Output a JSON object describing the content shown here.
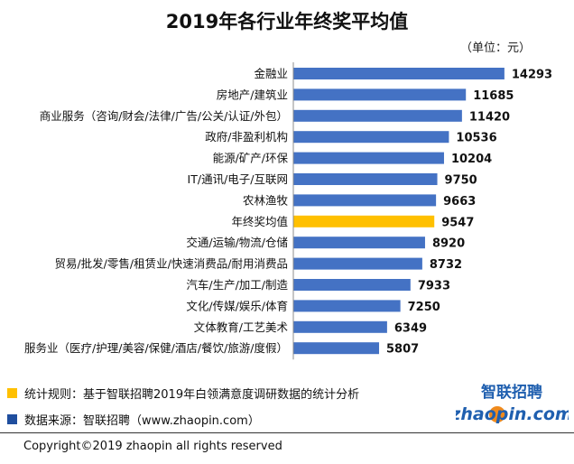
{
  "chart_data": {
    "type": "bar",
    "orientation": "horizontal",
    "title": "2019年各行业年终奖平均值",
    "unit_note": "（单位：元）",
    "categories": [
      "金融业",
      "房地产/建筑业",
      "商业服务（咨询/财会/法律/广告/公关/认证/外包）",
      "政府/非盈利机构",
      "能源/矿产/环保",
      "IT/通讯/电子/互联网",
      "农林渔牧",
      "年终奖均值",
      "交通/运输/物流/仓储",
      "贸易/批发/零售/租赁业/快速消费品/耐用消费品",
      "汽车/生产/加工/制造",
      "文化/传媒/娱乐/体育",
      "文体教育/工艺美术",
      "服务业（医疗/护理/美容/保健/酒店/餐饮/旅游/度假）"
    ],
    "values": [
      14293,
      11685,
      11420,
      10536,
      10204,
      9750,
      9663,
      9547,
      8920,
      8732,
      7933,
      7250,
      6349,
      5807
    ],
    "highlight_index": 7,
    "colors": {
      "bar": "#4472C4",
      "highlight": "#FFC000"
    },
    "xlim": [
      0,
      16500
    ],
    "grid": false
  },
  "legend": [
    {
      "text": "统计规则：基于智联招聘2019年白领满意度调研数据的统计分析",
      "color": "#FFC000"
    },
    {
      "text": "数据来源：智联招聘（www.zhaopin.com）",
      "color": "#1F4E9E"
    }
  ],
  "footer": {
    "copyright": "Copyright©2019 zhaopin all rights reserved"
  },
  "logo": {
    "cn": "智联招聘",
    "en": "zhaopin.com",
    "colors": {
      "blue": "#1F5FAF",
      "orange": "#F08A1C"
    }
  }
}
